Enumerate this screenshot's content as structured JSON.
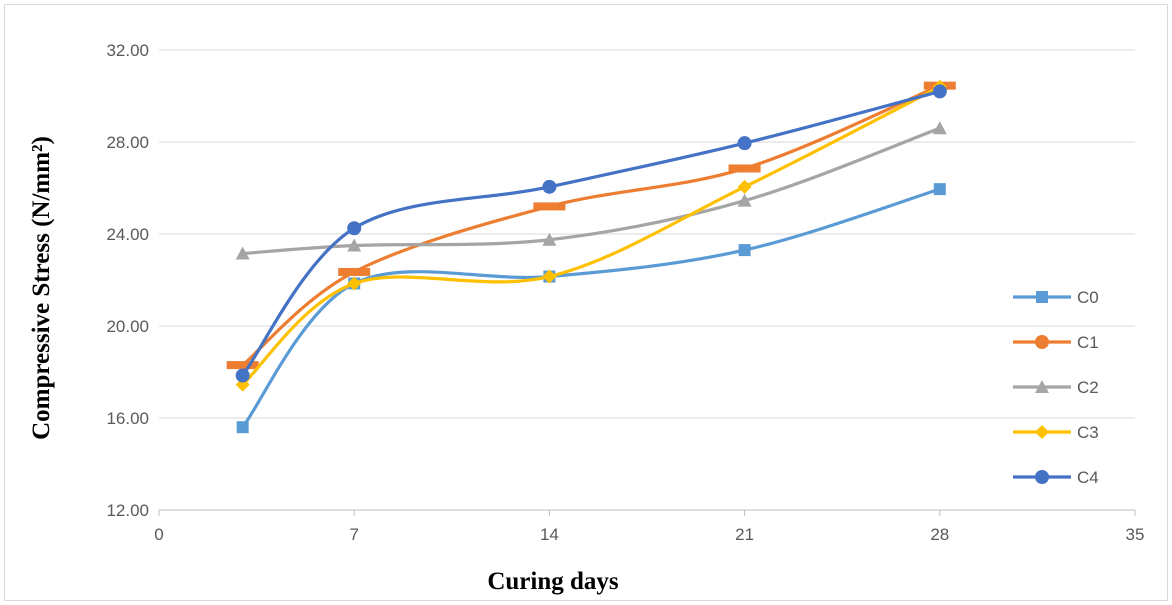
{
  "chart_data": {
    "type": "scatter",
    "xlabel": "Curing days",
    "ylabel": "Compressive Stress (N/mm²)",
    "xlim": [
      0,
      35
    ],
    "ylim": [
      12,
      32
    ],
    "x_ticks": [
      "0",
      "7",
      "14",
      "21",
      "28",
      "35"
    ],
    "y_ticks": [
      "12.00",
      "16.00",
      "20.00",
      "24.00",
      "28.00",
      "32.00"
    ],
    "grid": "horizontal",
    "legend": "right",
    "x": [
      3,
      7,
      14,
      21,
      28
    ],
    "series": [
      {
        "name": "C0",
        "color": "#5b9bd5",
        "marker": "square",
        "values": [
          15.6,
          21.85,
          22.15,
          23.3,
          25.95
        ]
      },
      {
        "name": "C1",
        "color": "#ed7d31",
        "marker": "dash",
        "values": [
          18.3,
          22.35,
          25.2,
          26.85,
          30.45
        ]
      },
      {
        "name": "C2",
        "color": "#a5a5a5",
        "marker": "triangle",
        "values": [
          23.15,
          23.5,
          23.75,
          25.45,
          28.6
        ]
      },
      {
        "name": "C3",
        "color": "#ffc000",
        "marker": "diamond",
        "values": [
          17.45,
          21.85,
          22.15,
          26.05,
          30.4
        ]
      },
      {
        "name": "C4",
        "color": "#4472c4",
        "marker": "circle",
        "values": [
          17.85,
          24.25,
          26.05,
          27.95,
          30.2
        ]
      }
    ]
  }
}
